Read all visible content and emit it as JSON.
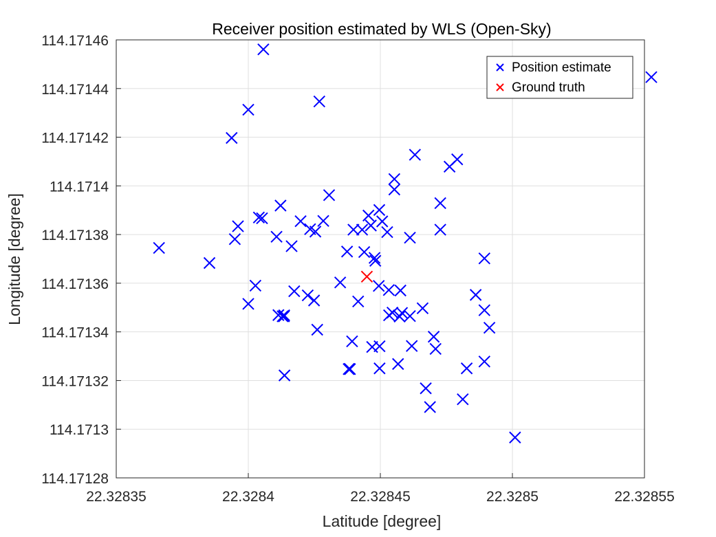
{
  "chart_data": {
    "type": "scatter",
    "title": "Receiver position estimated by WLS (Open-Sky)",
    "xlabel": "Latitude [degree]",
    "ylabel": "Longitude [degree]",
    "xlim": [
      22.32835,
      22.32855
    ],
    "ylim": [
      114.17128,
      114.17146
    ],
    "xticks": [
      22.32835,
      22.3284,
      22.32845,
      22.3285,
      22.32855
    ],
    "xtick_labels": [
      "22.32835",
      "22.3284",
      "22.32845",
      "22.3285",
      "22.32855"
    ],
    "yticks": [
      114.17128,
      114.1713,
      114.17132,
      114.17134,
      114.17136,
      114.17138,
      114.1714,
      114.17142,
      114.17144,
      114.17146
    ],
    "ytick_labels": [
      "114.17128",
      "114.1713",
      "114.17132",
      "114.17134",
      "114.17136",
      "114.17138",
      "114.1714",
      "114.17142",
      "114.17144",
      "114.17146"
    ],
    "grid": true,
    "legend_position": "top-right",
    "series": [
      {
        "name": "Position estimate",
        "color": "#0000ff",
        "marker": "x",
        "points": [
          [
            22.3284057,
            114.1714561
          ],
          [
            22.3284,
            114.1714313
          ],
          [
            22.3284269,
            114.1714347
          ],
          [
            22.3283937,
            114.1714197
          ],
          [
            22.3285526,
            114.1714447
          ],
          [
            22.3284631,
            114.1714128
          ],
          [
            22.3284791,
            114.1714109
          ],
          [
            22.3284762,
            114.1714079
          ],
          [
            22.3284553,
            114.1714028
          ],
          [
            22.3284553,
            114.1713985
          ],
          [
            22.3284306,
            114.1713962
          ],
          [
            22.3284122,
            114.1713919
          ],
          [
            22.3284727,
            114.1713929
          ],
          [
            22.3284496,
            114.1713901
          ],
          [
            22.3284455,
            114.1713878
          ],
          [
            22.328404,
            114.171387
          ],
          [
            22.3284052,
            114.1713867
          ],
          [
            22.3284198,
            114.1713855
          ],
          [
            22.3284284,
            114.1713856
          ],
          [
            22.3284507,
            114.1713854
          ],
          [
            22.3283961,
            114.1713834
          ],
          [
            22.3284234,
            114.1713822
          ],
          [
            22.3284254,
            114.1713812
          ],
          [
            22.3284398,
            114.171382
          ],
          [
            22.3284431,
            114.171382
          ],
          [
            22.3284464,
            114.1713837
          ],
          [
            22.3284727,
            114.171382
          ],
          [
            22.3284526,
            114.171381
          ],
          [
            22.3283949,
            114.1713781
          ],
          [
            22.3284107,
            114.1713791
          ],
          [
            22.3284612,
            114.1713787
          ],
          [
            22.3284164,
            114.1713752
          ],
          [
            22.3283662,
            114.1713745
          ],
          [
            22.3284374,
            114.171373
          ],
          [
            22.3284439,
            114.1713728
          ],
          [
            22.3284478,
            114.1713704
          ],
          [
            22.3284481,
            114.1713692
          ],
          [
            22.3284894,
            114.1713702
          ],
          [
            22.3283853,
            114.1713683
          ],
          [
            22.3284348,
            114.1713603
          ],
          [
            22.3284027,
            114.171359
          ],
          [
            22.3284494,
            114.1713589
          ],
          [
            22.3284532,
            114.1713572
          ],
          [
            22.3284576,
            114.171357
          ],
          [
            22.3284174,
            114.1713567
          ],
          [
            22.3284861,
            114.1713552
          ],
          [
            22.3284225,
            114.171355
          ],
          [
            22.3284249,
            114.1713529
          ],
          [
            22.3284416,
            114.1713525
          ],
          [
            22.3284,
            114.1713515
          ],
          [
            22.328466,
            114.1713497
          ],
          [
            22.3284894,
            114.1713489
          ],
          [
            22.3284546,
            114.1713479
          ],
          [
            22.3284582,
            114.1713478
          ],
          [
            22.3284573,
            114.1713463
          ],
          [
            22.3284533,
            114.1713468
          ],
          [
            22.3284612,
            114.1713465
          ],
          [
            22.3284114,
            114.1713469
          ],
          [
            22.328413,
            114.1713464
          ],
          [
            22.3284136,
            114.1713468
          ],
          [
            22.3284135,
            114.1713464
          ],
          [
            22.3284913,
            114.1713417
          ],
          [
            22.3284261,
            114.1713409
          ],
          [
            22.3284702,
            114.171338
          ],
          [
            22.3284393,
            114.1713361
          ],
          [
            22.3284619,
            114.1713342
          ],
          [
            22.3284497,
            114.1713341
          ],
          [
            22.3284469,
            114.1713338
          ],
          [
            22.3284709,
            114.171333
          ],
          [
            22.3284894,
            114.1713278
          ],
          [
            22.3284567,
            114.1713268
          ],
          [
            22.3284827,
            114.171325
          ],
          [
            22.3284497,
            114.171325
          ],
          [
            22.3284382,
            114.1713248
          ],
          [
            22.3284385,
            114.1713247
          ],
          [
            22.328438,
            114.1713247
          ],
          [
            22.3284137,
            114.1713221
          ],
          [
            22.3284672,
            114.1713168
          ],
          [
            22.3284812,
            114.1713123
          ],
          [
            22.3284688,
            114.1713091
          ],
          [
            22.328501,
            114.1712966
          ]
        ]
      },
      {
        "name": "Ground truth",
        "color": "#ff0000",
        "marker": "x",
        "points": [
          [
            22.3284449,
            114.1713627
          ]
        ]
      }
    ]
  }
}
